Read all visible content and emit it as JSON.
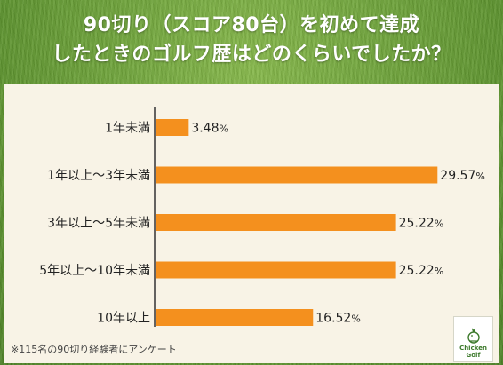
{
  "title": {
    "line1": "90切り（スコア80台）を初めて達成",
    "line2": "したときのゴルフ歴はどのくらいでしたか？"
  },
  "footnote": "※115名の90切り経験者にアンケート",
  "logo": {
    "line1": "Chicken",
    "line2": "Golf"
  },
  "colors": {
    "bar": "#f4901e",
    "panel": "#f8f3e6",
    "background": "#6fa33a"
  },
  "chart_data": {
    "type": "bar",
    "orientation": "horizontal",
    "categories": [
      "1年未満",
      "1年以上〜3年未満",
      "3年以上〜5年未満",
      "5年以上〜10年未満",
      "10年以上"
    ],
    "values": [
      3.48,
      29.57,
      25.22,
      25.22,
      16.52
    ],
    "value_labels": [
      "3.48",
      "29.57",
      "25.22",
      "25.22",
      "16.52"
    ],
    "value_unit": "%",
    "title": "90切り（スコア80台）を初めて達成したときのゴルフ歴はどのくらいでしたか？",
    "xlabel": "",
    "ylabel": "",
    "grid": false,
    "legend": "none"
  }
}
